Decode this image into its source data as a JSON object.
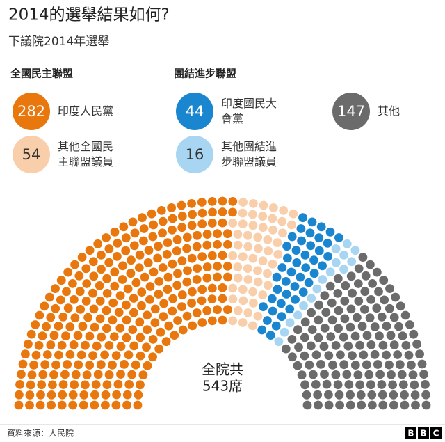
{
  "chart_data": {
    "type": "parliament",
    "title": "2014的選舉結果如何?",
    "subtitle": "下議院2014年選舉",
    "groups": [
      {
        "title": "全國民主聯盟",
        "series": [
          {
            "name": "印度人民黨",
            "value": 282,
            "color": "#e8770e"
          },
          {
            "name": "其他全國民主聯盟議員",
            "value": 54,
            "color": "#f9cfab"
          }
        ]
      },
      {
        "title": "團結進步聯盟",
        "series": [
          {
            "name": "印度國民大會黨",
            "value": 44,
            "color": "#1b86d0"
          },
          {
            "name": "其他團結進步聯盟議員",
            "value": 16,
            "color": "#a8d6f2"
          }
        ]
      },
      {
        "series": [
          {
            "name": "其他",
            "value": 147,
            "color": "#6b6b6b"
          }
        ]
      }
    ],
    "total_caption": "全院共",
    "total": {
      "value": 543,
      "label": "543席"
    },
    "source": "資料來源：人民院",
    "logo": [
      "B",
      "B",
      "C"
    ]
  }
}
